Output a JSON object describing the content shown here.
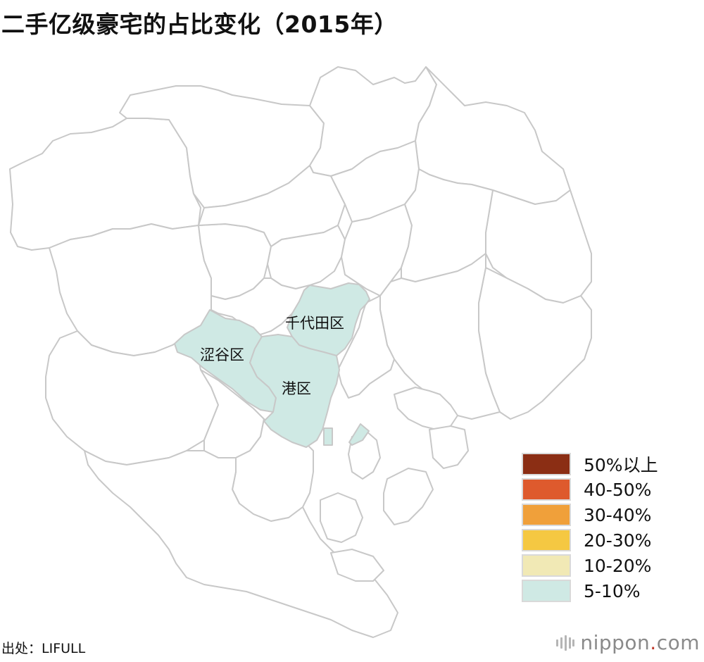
{
  "title": "二手亿级豪宅的占比变化（2015年）",
  "map": {
    "highlight_fill": "#cfe9e4",
    "default_fill": "#ffffff",
    "border_color": "#c8c8c8",
    "highlighted_wards": [
      {
        "name": "千代田区",
        "category": "5-10%"
      },
      {
        "name": "涩谷区",
        "category": "5-10%"
      },
      {
        "name": "港区",
        "category": "5-10%"
      }
    ]
  },
  "legend": [
    {
      "label": "50%以上",
      "color": "#8b2e14"
    },
    {
      "label": "40-50%",
      "color": "#de5a2d"
    },
    {
      "label": "30-40%",
      "color": "#f0a03a"
    },
    {
      "label": "20-30%",
      "color": "#f5c842"
    },
    {
      "label": "10-20%",
      "color": "#f1e9b5"
    },
    {
      "label": "5-10%",
      "color": "#cfe9e4"
    }
  ],
  "source": "出处：LIFULL",
  "brand": {
    "name": "nippon",
    "dot": ".",
    "suffix": "com"
  }
}
